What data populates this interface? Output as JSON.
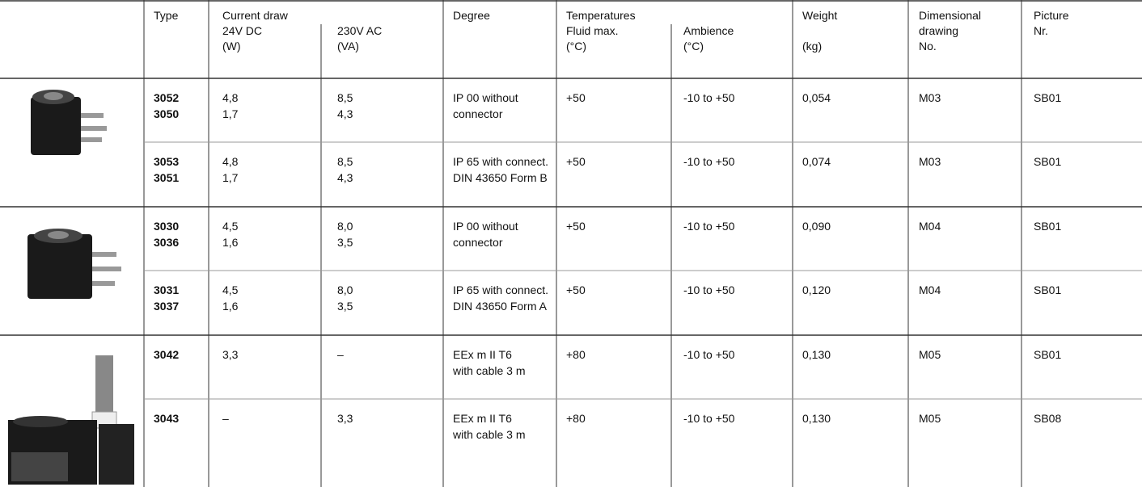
{
  "header": {
    "type": "Type",
    "current_draw": {
      "title": "Current draw",
      "dc": [
        "24V DC",
        "(W)"
      ],
      "ac": [
        "230V AC",
        "(VA)"
      ]
    },
    "degree": "Degree",
    "temperatures": {
      "title": "Temperatures",
      "fluid": [
        "Fluid max.",
        "(°C)"
      ],
      "ambience": [
        "Ambience",
        "(°C)"
      ]
    },
    "weight": [
      "Weight",
      "(kg)"
    ],
    "drawing": [
      "Dimensional",
      "drawing",
      "No."
    ],
    "picture": [
      "Picture",
      "Nr."
    ]
  },
  "rows": [
    {
      "type": [
        "3052",
        "3050"
      ],
      "dc": [
        "4,8",
        "1,7"
      ],
      "ac": [
        "8,5",
        "4,3"
      ],
      "degree": [
        "IP 00 without",
        "connector"
      ],
      "fluid": "+50",
      "ambience": "-10 to +50",
      "weight": "0,054",
      "drawing": "M03",
      "picture": "SB01"
    },
    {
      "type": [
        "3053",
        "3051"
      ],
      "dc": [
        "4,8",
        "1,7"
      ],
      "ac": [
        "8,5",
        "4,3"
      ],
      "degree": [
        "IP 65 with connect.",
        "DIN 43650 Form B"
      ],
      "fluid": "+50",
      "ambience": "-10 to +50",
      "weight": "0,074",
      "drawing": "M03",
      "picture": "SB01"
    },
    {
      "type": [
        "3030",
        "3036"
      ],
      "dc": [
        "4,5",
        "1,6"
      ],
      "ac": [
        "8,0",
        "3,5"
      ],
      "degree": [
        "IP 00 without",
        "connector"
      ],
      "fluid": "+50",
      "ambience": "-10 to +50",
      "weight": "0,090",
      "drawing": "M04",
      "picture": "SB01"
    },
    {
      "type": [
        "3031",
        "3037"
      ],
      "dc": [
        "4,5",
        "1,6"
      ],
      "ac": [
        "8,0",
        "3,5"
      ],
      "degree": [
        "IP 65 with connect.",
        "DIN 43650 Form A"
      ],
      "fluid": "+50",
      "ambience": "-10 to +50",
      "weight": "0,120",
      "drawing": "M04",
      "picture": "SB01"
    },
    {
      "type": [
        "3042"
      ],
      "dc": [
        "3,3"
      ],
      "ac": [
        "–"
      ],
      "degree": [
        "EEx m II T6",
        "with cable 3 m"
      ],
      "fluid": "+80",
      "ambience": "-10 to +50",
      "weight": "0,130",
      "drawing": "M05",
      "picture": "SB01"
    },
    {
      "type": [
        "3043"
      ],
      "dc": [
        "–"
      ],
      "ac": [
        "3,3"
      ],
      "degree": [
        "EEx m II T6",
        "with cable 3 m"
      ],
      "fluid": "+80",
      "ambience": "-10 to +50",
      "weight": "0,130",
      "drawing": "M05",
      "picture": "SB08"
    }
  ]
}
